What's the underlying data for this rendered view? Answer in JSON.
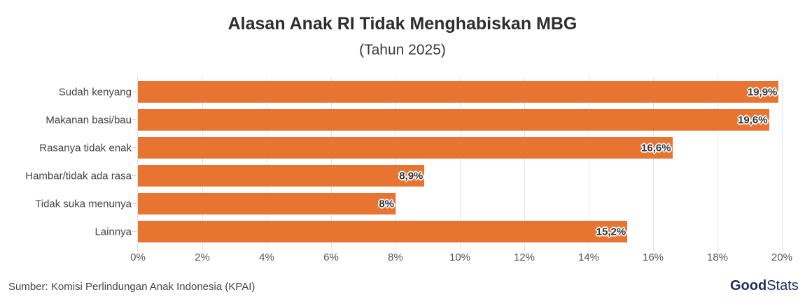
{
  "header": {
    "title": "Alasan Anak RI Tidak Menghabiskan MBG",
    "subtitle": "(Tahun 2025)"
  },
  "footer": {
    "source": "Sumber: Komisi Perlindungan Anak Indonesia (KPAI)",
    "logo_bold": "Good",
    "logo_light": "Stats"
  },
  "colors": {
    "bar": "#e87431",
    "text": "#333333",
    "logo": "#1f2d5a"
  },
  "chart_data": {
    "type": "bar",
    "orientation": "horizontal",
    "title": "Alasan Anak RI Tidak Menghabiskan MBG",
    "subtitle": "(Tahun 2025)",
    "xlabel": "",
    "ylabel": "",
    "categories": [
      "Sudah kenyang",
      "Makanan basi/bau",
      "Rasanya tidak enak",
      "Hambar/tidak ada rasa",
      "Tidak suka menunya",
      "Lainnya"
    ],
    "values": [
      19.9,
      19.6,
      16.6,
      8.9,
      8,
      15.2
    ],
    "value_labels": [
      "19,9%",
      "19,6%",
      "16,6%",
      "8,9%",
      "8%",
      "15,2%"
    ],
    "xlim": [
      0,
      20
    ],
    "x_ticks": [
      "0%",
      "2%",
      "4%",
      "6%",
      "8%",
      "10%",
      "12%",
      "14%",
      "16%",
      "18%",
      "20%"
    ],
    "grid": true,
    "legend": null,
    "source": "Sumber: Komisi Perlindungan Anak Indonesia (KPAI)"
  }
}
